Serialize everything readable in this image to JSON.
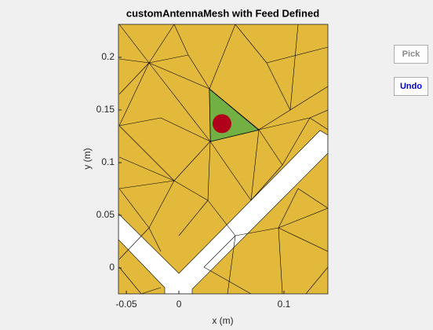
{
  "chart_data": {
    "type": "mesh-feed",
    "title": "customAntennaMesh with Feed Defined",
    "x_label": "x (m)",
    "y_label": "y (m)",
    "xlim": [
      -0.0575,
      0.1418
    ],
    "ylim": [
      -0.0246,
      0.2313
    ],
    "xticks": [
      -0.05,
      0,
      0.1
    ],
    "yticks": [
      0,
      0.05,
      0.1,
      0.15,
      0.2
    ],
    "mesh_color": "#e2b93b",
    "feed_region_color": "#72b043",
    "feed_color": "#b0001a",
    "feed_region": {
      "x": [
        0.029,
        0.076,
        0.03
      ],
      "y": [
        0.17,
        0.131,
        0.12
      ]
    },
    "feed_point": {
      "x": [
        0.041
      ],
      "y": [
        0.137
      ]
    }
  },
  "buttons": [
    "Pick",
    "Undo"
  ]
}
